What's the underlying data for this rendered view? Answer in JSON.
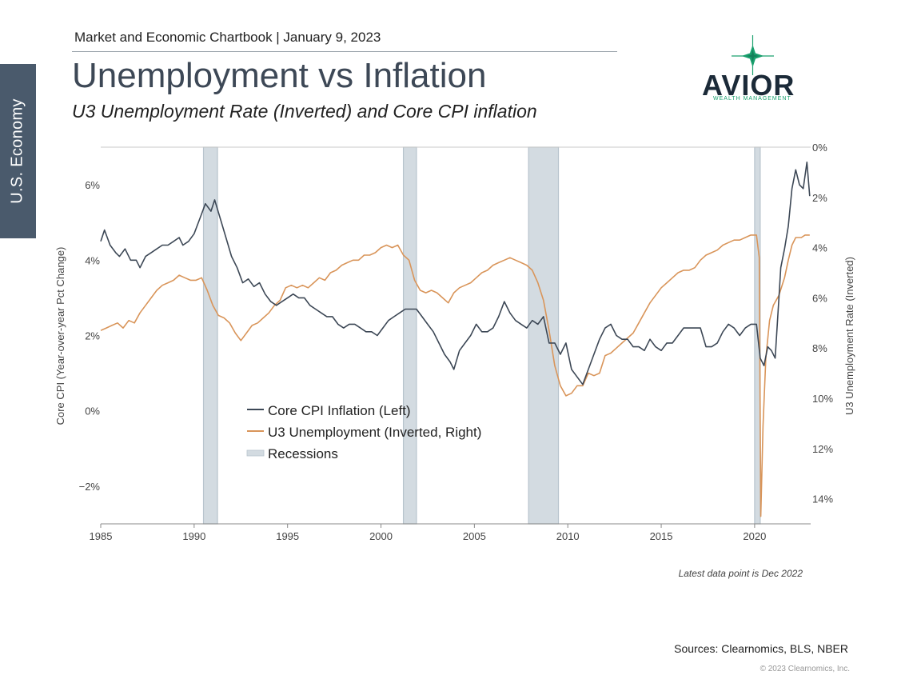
{
  "section_tab": "U.S. Economy",
  "header": {
    "line": "Market and Economic Chartbook | January 9, 2023"
  },
  "title": "Unemployment vs Inflation",
  "subtitle": "U3 Unemployment Rate (Inverted) and Core CPI inflation",
  "logo": {
    "word": "AVIOR",
    "tagline": "WEALTH MANAGEMENT",
    "icon": "star-icon",
    "color": "#1aa06e"
  },
  "note": "Latest data point is Dec 2022",
  "sources": "Sources: Clearnomics, BLS, NBER",
  "copyright": "© 2023 Clearnomics, Inc.",
  "chart_data": {
    "type": "line",
    "x_range": [
      1985,
      2023
    ],
    "y_left": {
      "label": "Core CPI (Year-over-year Pct Change)",
      "range": [
        -3,
        7
      ],
      "ticks": [
        -2,
        0,
        2,
        4,
        6
      ],
      "tick_labels": [
        "−2%",
        "0%",
        "2%",
        "4%",
        "6%"
      ]
    },
    "y_right": {
      "label": "U3 Unemployment Rate (Inverted)",
      "range": [
        0,
        15
      ],
      "inverted": true,
      "ticks": [
        0,
        2,
        4,
        6,
        8,
        10,
        12,
        14
      ],
      "tick_labels": [
        "0%",
        "2%",
        "4%",
        "6%",
        "8%",
        "10%",
        "12%",
        "14%"
      ]
    },
    "x_ticks": [
      1985,
      1990,
      1995,
      2000,
      2005,
      2010,
      2015,
      2020
    ],
    "x_tick_labels": [
      "1985",
      "1990",
      "1995",
      "2000",
      "2005",
      "2010",
      "2015",
      "2020"
    ],
    "recessions": [
      [
        1990.5,
        1991.25
      ],
      [
        2001.2,
        2001.9
      ],
      [
        2007.9,
        2009.5
      ],
      [
        2020.0,
        2020.3
      ]
    ],
    "series": [
      {
        "name": "Core CPI Inflation (Left)",
        "axis": "left",
        "color": "#3d4856",
        "points": [
          [
            1985.0,
            4.5
          ],
          [
            1985.2,
            4.8
          ],
          [
            1985.5,
            4.4
          ],
          [
            1985.8,
            4.2
          ],
          [
            1986.0,
            4.1
          ],
          [
            1986.3,
            4.3
          ],
          [
            1986.6,
            4.0
          ],
          [
            1986.9,
            4.0
          ],
          [
            1987.1,
            3.8
          ],
          [
            1987.4,
            4.1
          ],
          [
            1987.7,
            4.2
          ],
          [
            1988.0,
            4.3
          ],
          [
            1988.3,
            4.4
          ],
          [
            1988.6,
            4.4
          ],
          [
            1988.9,
            4.5
          ],
          [
            1989.2,
            4.6
          ],
          [
            1989.4,
            4.4
          ],
          [
            1989.7,
            4.5
          ],
          [
            1990.0,
            4.7
          ],
          [
            1990.3,
            5.1
          ],
          [
            1990.6,
            5.5
          ],
          [
            1990.9,
            5.3
          ],
          [
            1991.1,
            5.6
          ],
          [
            1991.4,
            5.1
          ],
          [
            1991.7,
            4.6
          ],
          [
            1992.0,
            4.1
          ],
          [
            1992.3,
            3.8
          ],
          [
            1992.6,
            3.4
          ],
          [
            1992.9,
            3.5
          ],
          [
            1993.2,
            3.3
          ],
          [
            1993.5,
            3.4
          ],
          [
            1993.8,
            3.1
          ],
          [
            1994.1,
            2.9
          ],
          [
            1994.4,
            2.8
          ],
          [
            1994.7,
            2.9
          ],
          [
            1995.0,
            3.0
          ],
          [
            1995.3,
            3.1
          ],
          [
            1995.6,
            3.0
          ],
          [
            1995.9,
            3.0
          ],
          [
            1996.2,
            2.8
          ],
          [
            1996.5,
            2.7
          ],
          [
            1996.8,
            2.6
          ],
          [
            1997.1,
            2.5
          ],
          [
            1997.4,
            2.5
          ],
          [
            1997.7,
            2.3
          ],
          [
            1998.0,
            2.2
          ],
          [
            1998.3,
            2.3
          ],
          [
            1998.6,
            2.3
          ],
          [
            1998.9,
            2.2
          ],
          [
            1999.2,
            2.1
          ],
          [
            1999.5,
            2.1
          ],
          [
            1999.8,
            2.0
          ],
          [
            2000.1,
            2.2
          ],
          [
            2000.4,
            2.4
          ],
          [
            2000.7,
            2.5
          ],
          [
            2001.0,
            2.6
          ],
          [
            2001.3,
            2.7
          ],
          [
            2001.6,
            2.7
          ],
          [
            2001.9,
            2.7
          ],
          [
            2002.2,
            2.5
          ],
          [
            2002.5,
            2.3
          ],
          [
            2002.8,
            2.1
          ],
          [
            2003.1,
            1.8
          ],
          [
            2003.4,
            1.5
          ],
          [
            2003.7,
            1.3
          ],
          [
            2003.9,
            1.1
          ],
          [
            2004.2,
            1.6
          ],
          [
            2004.5,
            1.8
          ],
          [
            2004.8,
            2.0
          ],
          [
            2005.1,
            2.3
          ],
          [
            2005.4,
            2.1
          ],
          [
            2005.7,
            2.1
          ],
          [
            2006.0,
            2.2
          ],
          [
            2006.3,
            2.5
          ],
          [
            2006.6,
            2.9
          ],
          [
            2006.9,
            2.6
          ],
          [
            2007.2,
            2.4
          ],
          [
            2007.5,
            2.3
          ],
          [
            2007.8,
            2.2
          ],
          [
            2008.1,
            2.4
          ],
          [
            2008.4,
            2.3
          ],
          [
            2008.7,
            2.5
          ],
          [
            2009.0,
            1.8
          ],
          [
            2009.3,
            1.8
          ],
          [
            2009.6,
            1.5
          ],
          [
            2009.9,
            1.8
          ],
          [
            2010.2,
            1.1
          ],
          [
            2010.5,
            0.9
          ],
          [
            2010.8,
            0.7
          ],
          [
            2011.1,
            1.1
          ],
          [
            2011.4,
            1.5
          ],
          [
            2011.7,
            1.9
          ],
          [
            2012.0,
            2.2
          ],
          [
            2012.3,
            2.3
          ],
          [
            2012.6,
            2.0
          ],
          [
            2012.9,
            1.9
          ],
          [
            2013.2,
            1.9
          ],
          [
            2013.5,
            1.7
          ],
          [
            2013.8,
            1.7
          ],
          [
            2014.1,
            1.6
          ],
          [
            2014.4,
            1.9
          ],
          [
            2014.7,
            1.7
          ],
          [
            2015.0,
            1.6
          ],
          [
            2015.3,
            1.8
          ],
          [
            2015.6,
            1.8
          ],
          [
            2015.9,
            2.0
          ],
          [
            2016.2,
            2.2
          ],
          [
            2016.5,
            2.2
          ],
          [
            2016.8,
            2.2
          ],
          [
            2017.1,
            2.2
          ],
          [
            2017.4,
            1.7
          ],
          [
            2017.7,
            1.7
          ],
          [
            2018.0,
            1.8
          ],
          [
            2018.3,
            2.1
          ],
          [
            2018.6,
            2.3
          ],
          [
            2018.9,
            2.2
          ],
          [
            2019.2,
            2.0
          ],
          [
            2019.5,
            2.2
          ],
          [
            2019.8,
            2.3
          ],
          [
            2020.1,
            2.3
          ],
          [
            2020.3,
            1.4
          ],
          [
            2020.5,
            1.2
          ],
          [
            2020.7,
            1.7
          ],
          [
            2020.9,
            1.6
          ],
          [
            2021.1,
            1.4
          ],
          [
            2021.3,
            3.0
          ],
          [
            2021.4,
            3.8
          ],
          [
            2021.6,
            4.3
          ],
          [
            2021.8,
            4.9
          ],
          [
            2022.0,
            5.9
          ],
          [
            2022.2,
            6.4
          ],
          [
            2022.4,
            6.0
          ],
          [
            2022.6,
            5.9
          ],
          [
            2022.8,
            6.6
          ],
          [
            2022.95,
            5.7
          ]
        ]
      },
      {
        "name": "U3 Unemployment (Inverted, Right)",
        "axis": "right",
        "color": "#d9955a",
        "points": [
          [
            1985.0,
            7.3
          ],
          [
            1985.3,
            7.2
          ],
          [
            1985.6,
            7.1
          ],
          [
            1985.9,
            7.0
          ],
          [
            1986.2,
            7.2
          ],
          [
            1986.5,
            6.9
          ],
          [
            1986.8,
            7.0
          ],
          [
            1987.1,
            6.6
          ],
          [
            1987.4,
            6.3
          ],
          [
            1987.7,
            6.0
          ],
          [
            1988.0,
            5.7
          ],
          [
            1988.3,
            5.5
          ],
          [
            1988.6,
            5.4
          ],
          [
            1988.9,
            5.3
          ],
          [
            1989.2,
            5.1
          ],
          [
            1989.5,
            5.2
          ],
          [
            1989.8,
            5.3
          ],
          [
            1990.1,
            5.3
          ],
          [
            1990.4,
            5.2
          ],
          [
            1990.7,
            5.7
          ],
          [
            1991.0,
            6.3
          ],
          [
            1991.3,
            6.7
          ],
          [
            1991.6,
            6.8
          ],
          [
            1991.9,
            7.0
          ],
          [
            1992.2,
            7.4
          ],
          [
            1992.5,
            7.7
          ],
          [
            1992.8,
            7.4
          ],
          [
            1993.1,
            7.1
          ],
          [
            1993.4,
            7.0
          ],
          [
            1993.7,
            6.8
          ],
          [
            1994.0,
            6.6
          ],
          [
            1994.3,
            6.3
          ],
          [
            1994.6,
            6.1
          ],
          [
            1994.9,
            5.6
          ],
          [
            1995.2,
            5.5
          ],
          [
            1995.5,
            5.6
          ],
          [
            1995.8,
            5.5
          ],
          [
            1996.1,
            5.6
          ],
          [
            1996.4,
            5.4
          ],
          [
            1996.7,
            5.2
          ],
          [
            1997.0,
            5.3
          ],
          [
            1997.3,
            5.0
          ],
          [
            1997.6,
            4.9
          ],
          [
            1997.9,
            4.7
          ],
          [
            1998.2,
            4.6
          ],
          [
            1998.5,
            4.5
          ],
          [
            1998.8,
            4.5
          ],
          [
            1999.1,
            4.3
          ],
          [
            1999.4,
            4.3
          ],
          [
            1999.7,
            4.2
          ],
          [
            2000.0,
            4.0
          ],
          [
            2000.3,
            3.9
          ],
          [
            2000.6,
            4.0
          ],
          [
            2000.9,
            3.9
          ],
          [
            2001.2,
            4.3
          ],
          [
            2001.5,
            4.5
          ],
          [
            2001.8,
            5.3
          ],
          [
            2002.1,
            5.7
          ],
          [
            2002.4,
            5.8
          ],
          [
            2002.7,
            5.7
          ],
          [
            2003.0,
            5.8
          ],
          [
            2003.3,
            6.0
          ],
          [
            2003.6,
            6.2
          ],
          [
            2003.9,
            5.8
          ],
          [
            2004.2,
            5.6
          ],
          [
            2004.5,
            5.5
          ],
          [
            2004.8,
            5.4
          ],
          [
            2005.1,
            5.2
          ],
          [
            2005.4,
            5.0
          ],
          [
            2005.7,
            4.9
          ],
          [
            2006.0,
            4.7
          ],
          [
            2006.3,
            4.6
          ],
          [
            2006.6,
            4.5
          ],
          [
            2006.9,
            4.4
          ],
          [
            2007.2,
            4.5
          ],
          [
            2007.5,
            4.6
          ],
          [
            2007.8,
            4.7
          ],
          [
            2008.1,
            4.9
          ],
          [
            2008.4,
            5.4
          ],
          [
            2008.7,
            6.1
          ],
          [
            2009.0,
            7.3
          ],
          [
            2009.3,
            8.7
          ],
          [
            2009.6,
            9.5
          ],
          [
            2009.9,
            9.9
          ],
          [
            2010.2,
            9.8
          ],
          [
            2010.5,
            9.5
          ],
          [
            2010.8,
            9.5
          ],
          [
            2011.1,
            9.0
          ],
          [
            2011.4,
            9.1
          ],
          [
            2011.7,
            9.0
          ],
          [
            2012.0,
            8.3
          ],
          [
            2012.3,
            8.2
          ],
          [
            2012.6,
            8.0
          ],
          [
            2012.9,
            7.8
          ],
          [
            2013.2,
            7.6
          ],
          [
            2013.5,
            7.4
          ],
          [
            2013.8,
            7.0
          ],
          [
            2014.1,
            6.6
          ],
          [
            2014.4,
            6.2
          ],
          [
            2014.7,
            5.9
          ],
          [
            2015.0,
            5.6
          ],
          [
            2015.3,
            5.4
          ],
          [
            2015.6,
            5.2
          ],
          [
            2015.9,
            5.0
          ],
          [
            2016.2,
            4.9
          ],
          [
            2016.5,
            4.9
          ],
          [
            2016.8,
            4.8
          ],
          [
            2017.1,
            4.5
          ],
          [
            2017.4,
            4.3
          ],
          [
            2017.7,
            4.2
          ],
          [
            2018.0,
            4.1
          ],
          [
            2018.3,
            3.9
          ],
          [
            2018.6,
            3.8
          ],
          [
            2018.9,
            3.7
          ],
          [
            2019.2,
            3.7
          ],
          [
            2019.5,
            3.6
          ],
          [
            2019.8,
            3.5
          ],
          [
            2020.1,
            3.5
          ],
          [
            2020.25,
            4.4
          ],
          [
            2020.33,
            14.7
          ],
          [
            2020.45,
            11.1
          ],
          [
            2020.6,
            8.4
          ],
          [
            2020.8,
            6.9
          ],
          [
            2021.0,
            6.3
          ],
          [
            2021.3,
            5.9
          ],
          [
            2021.6,
            5.2
          ],
          [
            2021.8,
            4.5
          ],
          [
            2022.0,
            3.9
          ],
          [
            2022.2,
            3.6
          ],
          [
            2022.5,
            3.6
          ],
          [
            2022.7,
            3.5
          ],
          [
            2022.95,
            3.5
          ]
        ]
      }
    ],
    "legend": {
      "placement": "center-left",
      "entries": [
        "Core CPI Inflation (Left)",
        "U3 Unemployment (Inverted, Right)",
        "Recessions"
      ]
    },
    "recession_color": "#d3dbe1",
    "grid": false
  }
}
